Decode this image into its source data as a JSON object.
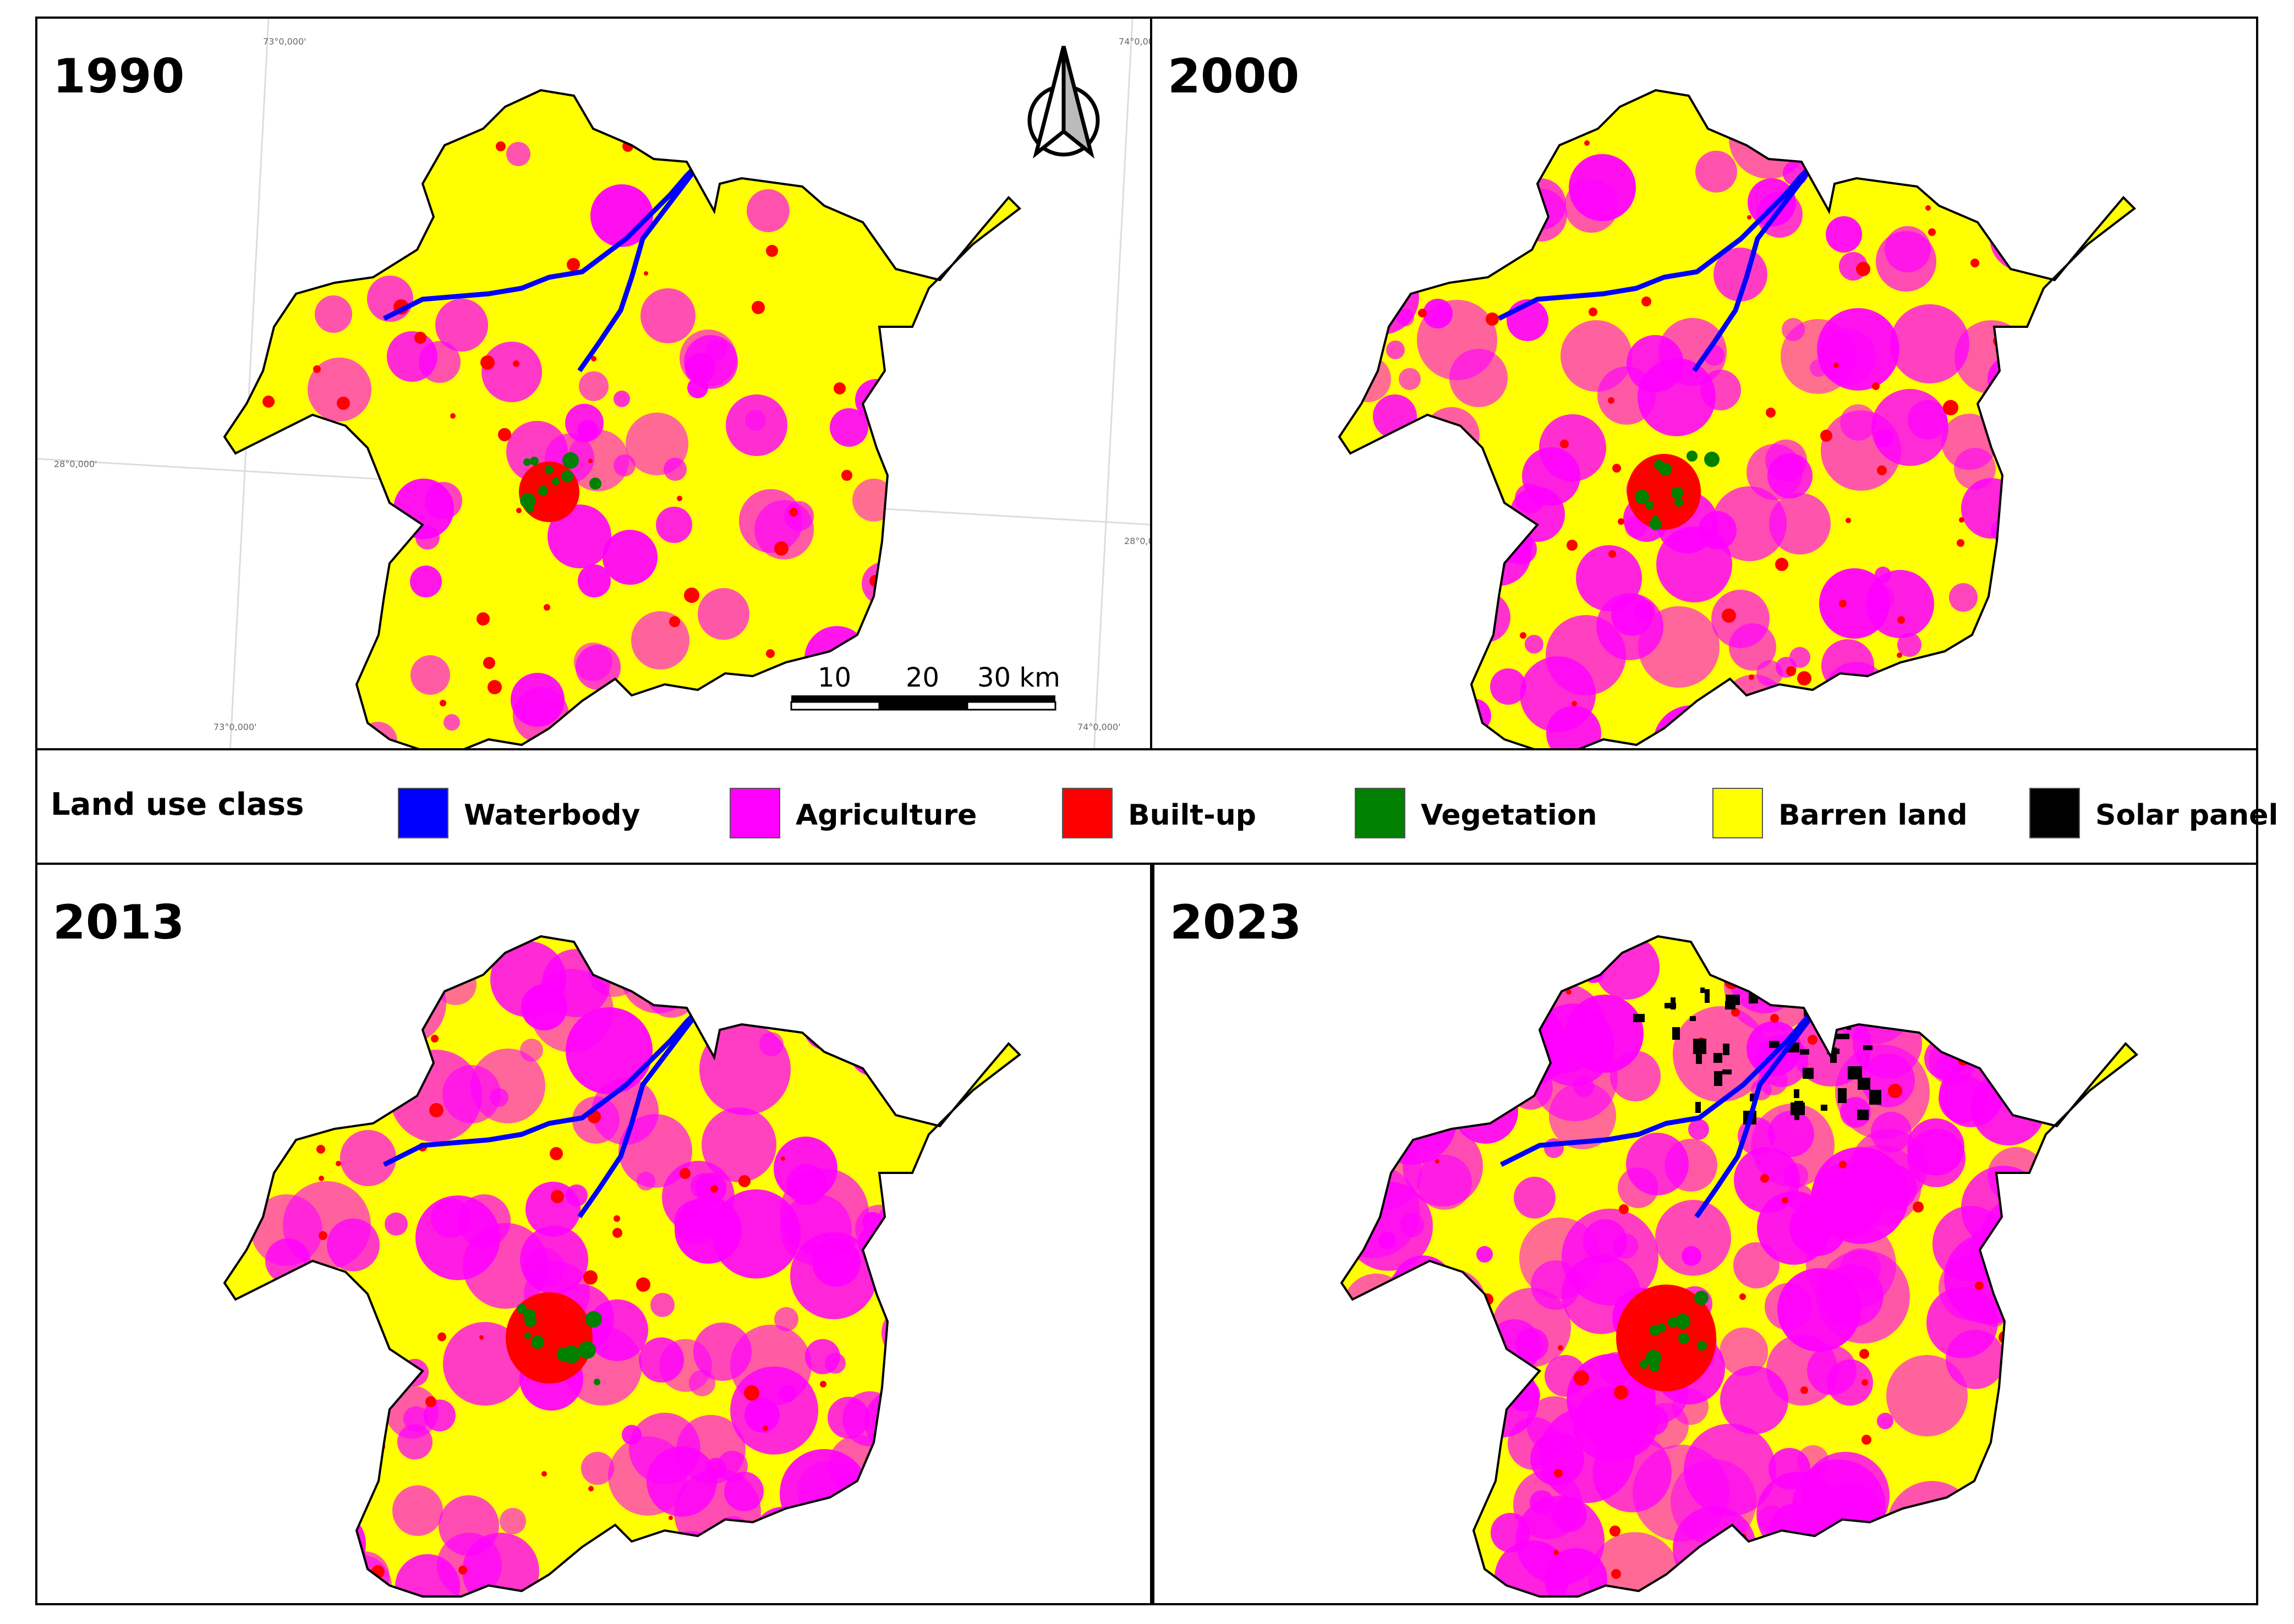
{
  "panels": [
    {
      "year": "1990"
    },
    {
      "year": "2000"
    },
    {
      "year": "2013"
    },
    {
      "year": "2023"
    }
  ],
  "legend": {
    "title": "Land use class",
    "items": [
      {
        "label": "Waterbody",
        "color": "#0000ff"
      },
      {
        "label": "Agriculture",
        "color": "#ff00ff"
      },
      {
        "label": "Built-up",
        "color": "#ff0000"
      },
      {
        "label": "Vegetation",
        "color": "#008000"
      },
      {
        "label": "Barren land",
        "color": "#ffff00"
      },
      {
        "label": "Solar panel",
        "color": "#000000"
      }
    ]
  },
  "scale_bar": {
    "labels": [
      "10",
      "20",
      "30 km"
    ]
  },
  "coordinates": {
    "lon_left": "73°0,000'",
    "lon_right": "74°0,000'",
    "lat": "28°0,000'"
  },
  "north_arrow": "north-arrow-icon"
}
